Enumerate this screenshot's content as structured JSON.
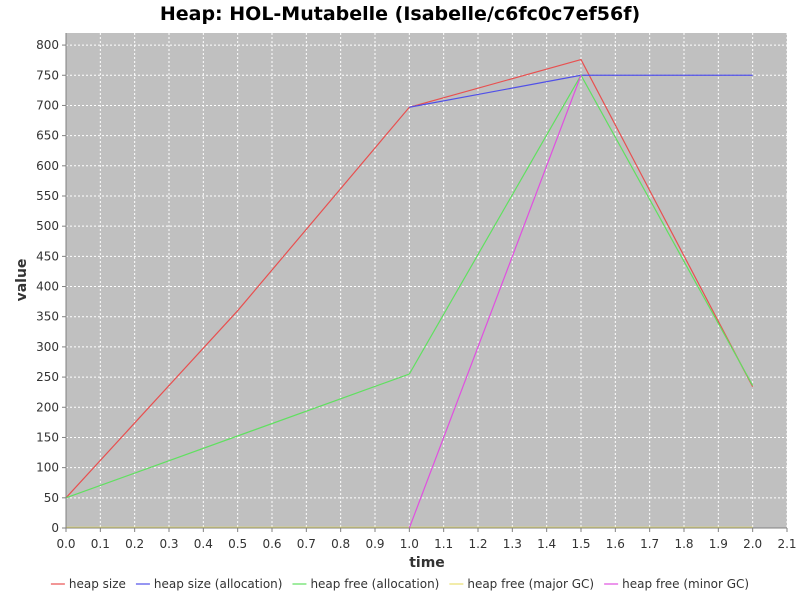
{
  "chart_data": {
    "type": "line",
    "title": "Heap: HOL-Mutabelle (Isabelle/c6fc0c7ef56f)",
    "xlabel": "time",
    "ylabel": "value",
    "xlim": [
      0.0,
      2.1
    ],
    "ylim": [
      0,
      820
    ],
    "x_ticks": [
      "0.0",
      "0.1",
      "0.2",
      "0.3",
      "0.4",
      "0.5",
      "0.6",
      "0.7",
      "0.8",
      "0.9",
      "1.0",
      "1.1",
      "1.2",
      "1.3",
      "1.4",
      "1.5",
      "1.6",
      "1.7",
      "1.8",
      "1.9",
      "2.0",
      "2.1"
    ],
    "y_ticks": [
      "0",
      "50",
      "100",
      "150",
      "200",
      "250",
      "300",
      "350",
      "400",
      "450",
      "500",
      "550",
      "600",
      "650",
      "700",
      "750",
      "800"
    ],
    "grid": true,
    "legend_position": "bottom",
    "background_color": "#c0c0c0",
    "series": [
      {
        "name": "heap size",
        "color": "#e85050",
        "x": [
          0.0,
          0.5,
          1.0,
          1.5,
          2.0
        ],
        "y": [
          50,
          360,
          697,
          776,
          234
        ]
      },
      {
        "name": "heap size (allocation)",
        "color": "#5050e8",
        "x": [
          1.0,
          1.5,
          2.0
        ],
        "y": [
          697,
          750,
          750
        ]
      },
      {
        "name": "heap free (allocation)",
        "color": "#60e060",
        "x": [
          0.0,
          1.0,
          1.5,
          2.0
        ],
        "y": [
          50,
          255,
          750,
          236
        ]
      },
      {
        "name": "heap free (major GC)",
        "color": "#e8e070",
        "x": [
          0.0,
          2.0
        ],
        "y": [
          1,
          1
        ]
      },
      {
        "name": "heap free (minor GC)",
        "color": "#e050e0",
        "x": [
          1.0,
          1.5
        ],
        "y": [
          0,
          750
        ]
      }
    ]
  }
}
